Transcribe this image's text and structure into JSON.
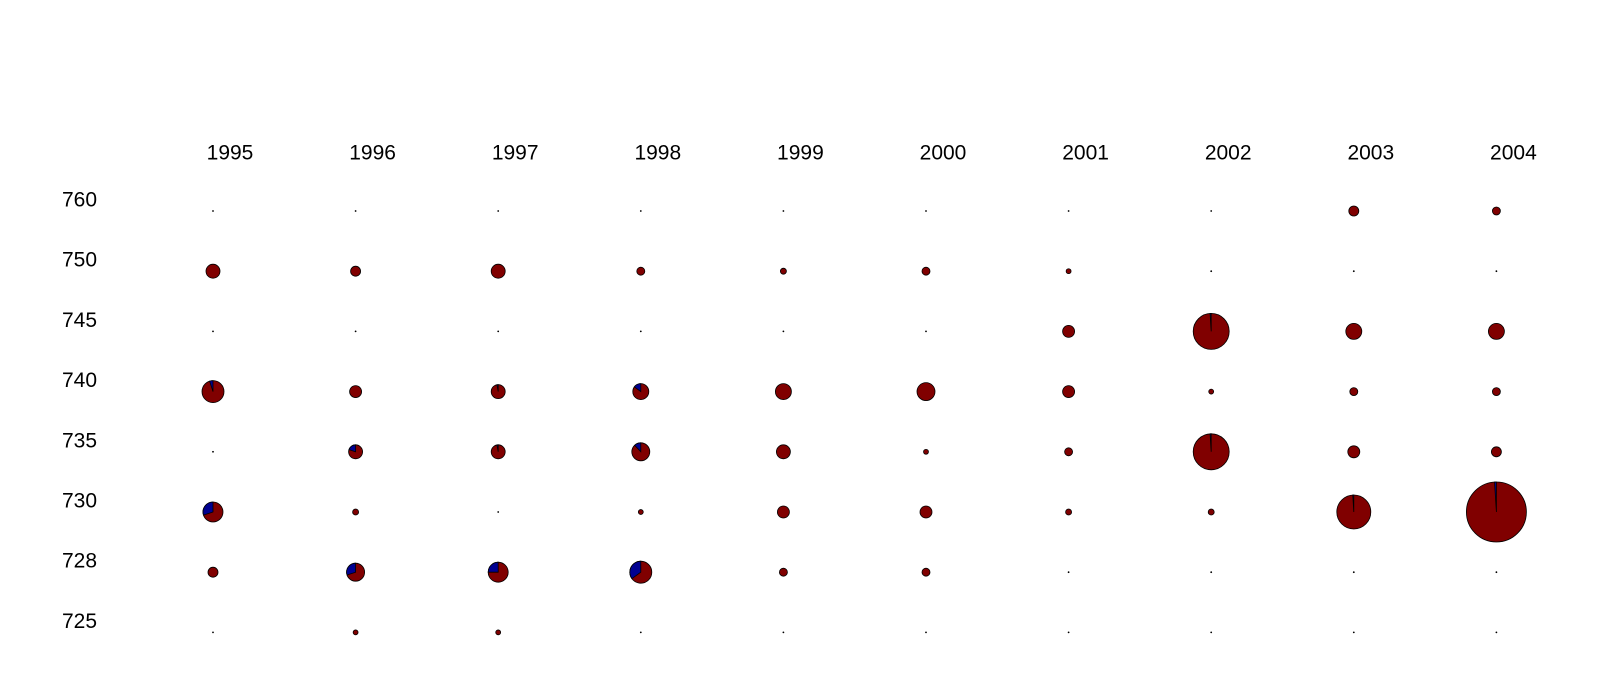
{
  "chart_data": {
    "type": "pie-grid",
    "columns": [
      "1995",
      "1996",
      "1997",
      "1998",
      "1999",
      "2000",
      "2001",
      "2002",
      "2003",
      "2004"
    ],
    "rows": [
      "760",
      "750",
      "745",
      "740",
      "735",
      "730",
      "728",
      "725"
    ],
    "colors": {
      "main": "#800000",
      "share": "#000090",
      "outline": "#000000"
    },
    "sizes": [
      [
        1,
        1,
        1,
        1,
        1,
        1,
        1,
        1,
        25,
        16
      ],
      [
        49,
        25,
        49,
        16,
        9,
        16,
        6,
        1,
        1,
        1
      ],
      [
        1,
        1,
        1,
        1,
        1,
        1,
        36,
        324,
        64,
        64
      ],
      [
        121,
        36,
        49,
        64,
        64,
        81,
        36,
        6,
        16,
        16
      ],
      [
        1,
        49,
        49,
        81,
        49,
        6,
        16,
        324,
        36,
        25
      ],
      [
        100,
        9,
        1,
        6,
        36,
        36,
        9,
        9,
        289,
        900
      ],
      [
        25,
        81,
        100,
        121,
        16,
        16,
        1,
        1,
        1,
        1
      ],
      [
        1,
        6,
        6,
        1,
        1,
        1,
        1,
        1,
        1,
        1
      ]
    ],
    "blue_share": [
      [
        0,
        0,
        0,
        0,
        0,
        0,
        0,
        0,
        0,
        0
      ],
      [
        0,
        0,
        0,
        0,
        0,
        0,
        0,
        0,
        0,
        0
      ],
      [
        0,
        0,
        0,
        0,
        0,
        0,
        0,
        1,
        0,
        0
      ],
      [
        5,
        0,
        3,
        15,
        0,
        0,
        0,
        0,
        0,
        0
      ],
      [
        0,
        20,
        3,
        12,
        0,
        0,
        0,
        1,
        0,
        0
      ],
      [
        30,
        0,
        0,
        0,
        0,
        0,
        0,
        0,
        1,
        1
      ],
      [
        0,
        30,
        25,
        35,
        0,
        0,
        0,
        0,
        0,
        0
      ],
      [
        0,
        0,
        0,
        0,
        0,
        0,
        0,
        0,
        0,
        0
      ]
    ]
  }
}
